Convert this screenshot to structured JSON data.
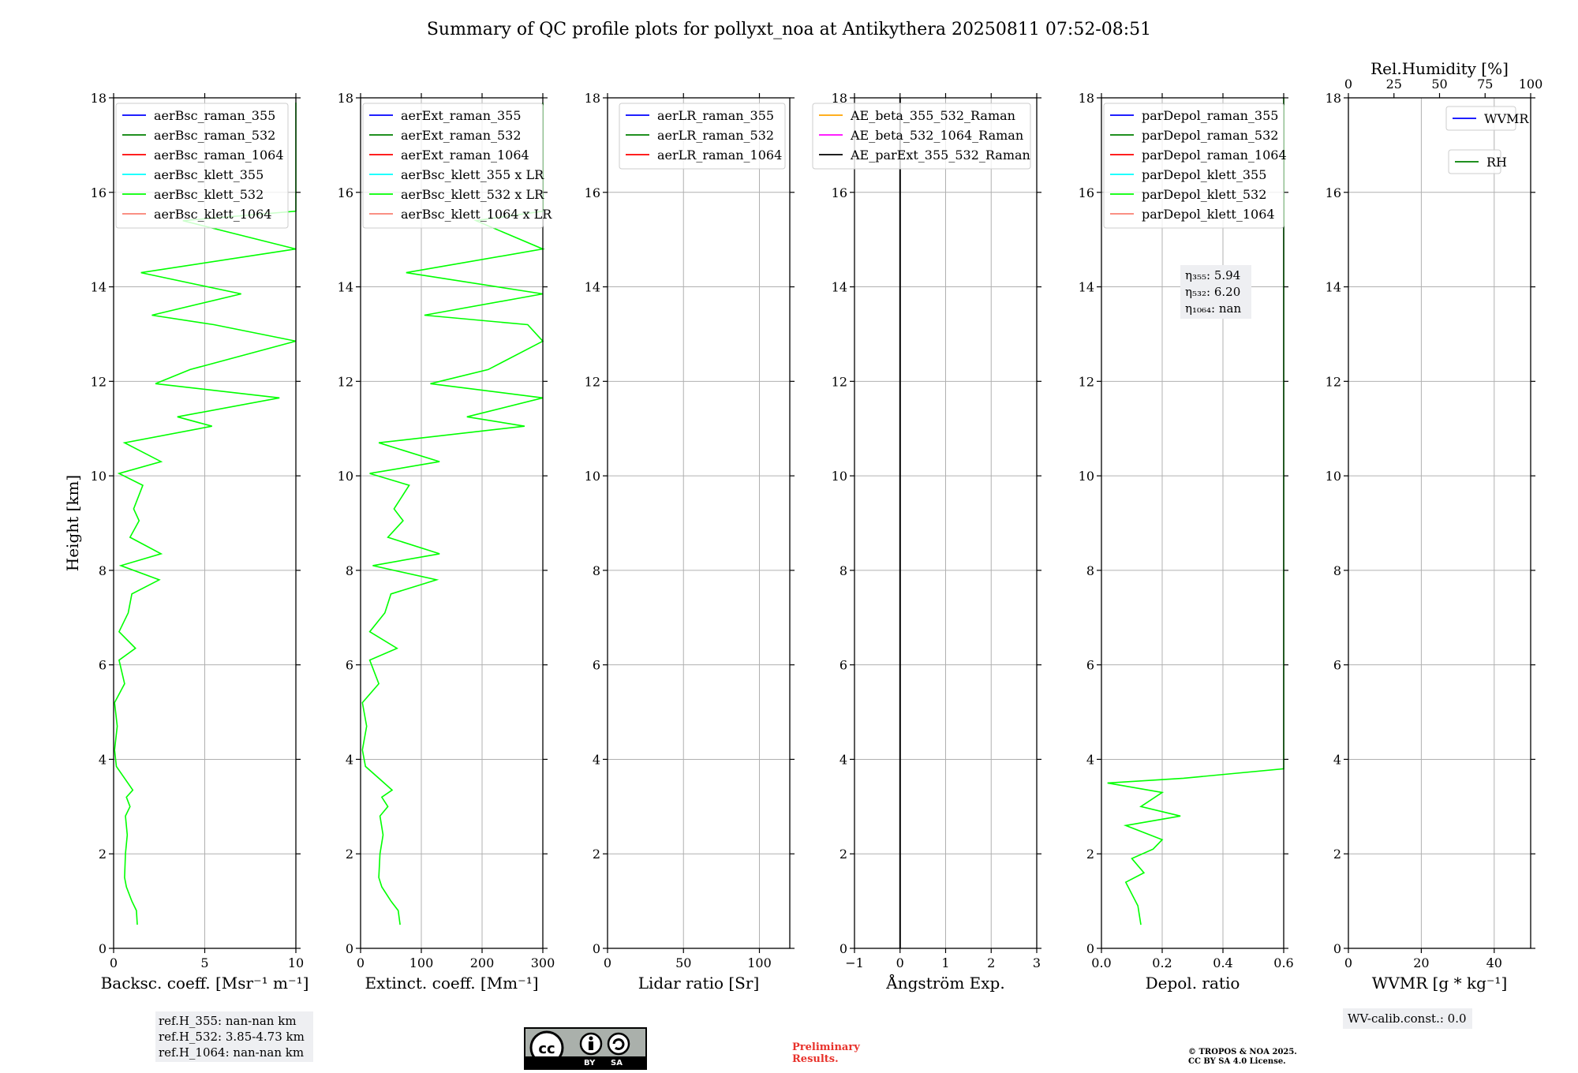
{
  "title": "Summary of QC profile plots for pollyxt_noa at Antikythera 20250811 07:52-08:51",
  "colors": {
    "blue": "#0000ff",
    "green": "#008000",
    "red": "#ff0000",
    "cyan": "#00ffff",
    "lime": "#00ff00",
    "salmon": "#fa8072",
    "orange": "#ffa500",
    "magenta": "#ff00ff",
    "black": "#000000"
  },
  "chart_data": [
    {
      "type": "line",
      "xlabel": "Backsc. coeff. [Msr⁻¹ m⁻¹]",
      "ylabel": "Height [km]",
      "xlim": [
        0,
        10
      ],
      "xticks": [
        "0",
        "5",
        "10"
      ],
      "ylim": [
        0,
        18
      ],
      "yticks": [
        "0",
        "2",
        "4",
        "6",
        "8",
        "10",
        "12",
        "14",
        "16",
        "18"
      ],
      "grid": true,
      "legend_position": "top-left",
      "series": [
        {
          "name": "aerBsc_raman_355",
          "color": "#0000ff",
          "points": []
        },
        {
          "name": "aerBsc_raman_532",
          "color": "#008000",
          "points": []
        },
        {
          "name": "aerBsc_raman_1064",
          "color": "#ff0000",
          "points": []
        },
        {
          "name": "aerBsc_klett_355",
          "color": "#00ffff",
          "points": []
        },
        {
          "name": "aerBsc_klett_532",
          "color": "#00ff00",
          "points": [
            [
              1.3,
              0.5
            ],
            [
              1.25,
              0.8
            ],
            [
              1.0,
              1.0
            ],
            [
              0.7,
              1.3
            ],
            [
              0.6,
              1.5
            ],
            [
              0.65,
              2.0
            ],
            [
              0.75,
              2.4
            ],
            [
              0.65,
              2.8
            ],
            [
              0.9,
              3.0
            ],
            [
              0.7,
              3.2
            ],
            [
              1.05,
              3.35
            ],
            [
              0.6,
              3.6
            ],
            [
              0.15,
              3.85
            ],
            [
              0.05,
              4.2
            ],
            [
              0.2,
              4.7
            ],
            [
              0.05,
              5.2
            ],
            [
              0.6,
              5.6
            ],
            [
              0.3,
              6.1
            ],
            [
              1.2,
              6.35
            ],
            [
              0.3,
              6.7
            ],
            [
              0.8,
              7.1
            ],
            [
              1.0,
              7.5
            ],
            [
              2.5,
              7.8
            ],
            [
              0.4,
              8.1
            ],
            [
              2.6,
              8.35
            ],
            [
              0.9,
              8.7
            ],
            [
              1.4,
              9.05
            ],
            [
              1.1,
              9.3
            ],
            [
              1.6,
              9.8
            ],
            [
              0.3,
              10.05
            ],
            [
              2.6,
              10.3
            ],
            [
              0.6,
              10.7
            ],
            [
              5.4,
              11.05
            ],
            [
              3.5,
              11.25
            ],
            [
              9.1,
              11.65
            ],
            [
              2.3,
              11.95
            ],
            [
              4.2,
              12.25
            ],
            [
              10.0,
              12.85
            ],
            [
              5.5,
              13.2
            ],
            [
              2.1,
              13.4
            ],
            [
              7.0,
              13.85
            ],
            [
              1.5,
              14.3
            ],
            [
              10,
              14.8
            ],
            [
              3.8,
              15.4
            ],
            [
              10,
              15.6
            ],
            [
              10,
              17.2
            ],
            [
              10,
              17.9
            ]
          ]
        },
        {
          "name": "aerBsc_klett_1064",
          "color": "#fa8072",
          "points": []
        }
      ],
      "reference_heights": [
        "ref.H_355: nan-nan km",
        "ref.H_532: 3.85-4.73 km",
        "ref.H_1064: nan-nan km"
      ]
    },
    {
      "type": "line",
      "xlabel": "Extinct. coeff. [Mm⁻¹]",
      "xlim": [
        0,
        300
      ],
      "xticks": [
        "0",
        "100",
        "200",
        "300"
      ],
      "ylim": [
        0,
        18
      ],
      "yticks": [
        "0",
        "2",
        "4",
        "6",
        "8",
        "10",
        "12",
        "14",
        "16",
        "18"
      ],
      "grid": true,
      "legend_position": "top-left",
      "series": [
        {
          "name": "aerExt_raman_355",
          "color": "#0000ff",
          "points": []
        },
        {
          "name": "aerExt_raman_532",
          "color": "#008000",
          "points": []
        },
        {
          "name": "aerExt_raman_1064",
          "color": "#ff0000",
          "points": []
        },
        {
          "name": "aerBsc_klett_355 x LR",
          "color": "#00ffff",
          "points": []
        },
        {
          "name": "aerBsc_klett_532 x LR",
          "color": "#00ff00",
          "points": [
            [
              65,
              0.5
            ],
            [
              62,
              0.8
            ],
            [
              50,
              1.0
            ],
            [
              35,
              1.3
            ],
            [
              30,
              1.5
            ],
            [
              32,
              2.0
            ],
            [
              37,
              2.4
            ],
            [
              32,
              2.8
            ],
            [
              45,
              3.0
            ],
            [
              35,
              3.2
            ],
            [
              52,
              3.35
            ],
            [
              30,
              3.6
            ],
            [
              8,
              3.85
            ],
            [
              3,
              4.2
            ],
            [
              10,
              4.7
            ],
            [
              3,
              5.2
            ],
            [
              30,
              5.6
            ],
            [
              15,
              6.1
            ],
            [
              60,
              6.35
            ],
            [
              15,
              6.7
            ],
            [
              40,
              7.1
            ],
            [
              50,
              7.5
            ],
            [
              125,
              7.8
            ],
            [
              20,
              8.1
            ],
            [
              130,
              8.35
            ],
            [
              45,
              8.7
            ],
            [
              70,
              9.05
            ],
            [
              55,
              9.3
            ],
            [
              80,
              9.8
            ],
            [
              15,
              10.05
            ],
            [
              130,
              10.3
            ],
            [
              30,
              10.7
            ],
            [
              270,
              11.05
            ],
            [
              175,
              11.25
            ],
            [
              300,
              11.65
            ],
            [
              115,
              11.95
            ],
            [
              210,
              12.25
            ],
            [
              300,
              12.85
            ],
            [
              275,
              13.2
            ],
            [
              105,
              13.4
            ],
            [
              300,
              13.85
            ],
            [
              75,
              14.3
            ],
            [
              300,
              14.8
            ],
            [
              190,
              15.4
            ],
            [
              300,
              15.6
            ],
            [
              300,
              17.2
            ],
            [
              300,
              17.9
            ]
          ]
        },
        {
          "name": "aerBsc_klett_1064 x LR",
          "color": "#fa8072",
          "points": []
        }
      ]
    },
    {
      "type": "line",
      "xlabel": "Lidar ratio [Sr]",
      "xlim": [
        0,
        120
      ],
      "xticks": [
        "0",
        "50",
        "100"
      ],
      "ylim": [
        0,
        18
      ],
      "yticks": [
        "0",
        "2",
        "4",
        "6",
        "8",
        "10",
        "12",
        "14",
        "16",
        "18"
      ],
      "grid": true,
      "legend_position": "top-right",
      "series": [
        {
          "name": "aerLR_raman_355",
          "color": "#0000ff",
          "points": []
        },
        {
          "name": "aerLR_raman_532",
          "color": "#008000",
          "points": []
        },
        {
          "name": "aerLR_raman_1064",
          "color": "#ff0000",
          "points": []
        }
      ]
    },
    {
      "type": "line",
      "xlabel": "Ångström Exp.",
      "xlim": [
        -1,
        3
      ],
      "xticks": [
        "−1",
        "0",
        "1",
        "2",
        "3"
      ],
      "ylim": [
        0,
        18
      ],
      "yticks": [
        "0",
        "2",
        "4",
        "6",
        "8",
        "10",
        "12",
        "14",
        "16",
        "18"
      ],
      "grid": true,
      "legend_position": "top-left",
      "series": [
        {
          "name": "AE_beta_355_532_Raman",
          "color": "#ffa500",
          "points": []
        },
        {
          "name": "AE_beta_532_1064_Raman",
          "color": "#ff00ff",
          "points": []
        },
        {
          "name": "AE_parExt_355_532_Raman",
          "color": "#000000",
          "points": [
            [
              0,
              0
            ],
            [
              0,
              18
            ]
          ]
        }
      ]
    },
    {
      "type": "line",
      "xlabel": "Depol. ratio",
      "xlim": [
        0,
        0.6
      ],
      "xticks": [
        "0.0",
        "0.2",
        "0.4",
        "0.6"
      ],
      "ylim": [
        0,
        18
      ],
      "yticks": [
        "0",
        "2",
        "4",
        "6",
        "8",
        "10",
        "12",
        "14",
        "16",
        "18"
      ],
      "grid": true,
      "legend_position": "top-left",
      "series": [
        {
          "name": "parDepol_raman_355",
          "color": "#0000ff",
          "points": []
        },
        {
          "name": "parDepol_raman_532",
          "color": "#008000",
          "points": []
        },
        {
          "name": "parDepol_raman_1064",
          "color": "#ff0000",
          "points": []
        },
        {
          "name": "parDepol_klett_355",
          "color": "#00ffff",
          "points": []
        },
        {
          "name": "parDepol_klett_532",
          "color": "#00ff00",
          "points": [
            [
              0.13,
              0.5
            ],
            [
              0.12,
              0.9
            ],
            [
              0.08,
              1.4
            ],
            [
              0.14,
              1.6
            ],
            [
              0.1,
              1.9
            ],
            [
              0.17,
              2.1
            ],
            [
              0.2,
              2.3
            ],
            [
              0.08,
              2.6
            ],
            [
              0.26,
              2.8
            ],
            [
              0.13,
              3.0
            ],
            [
              0.2,
              3.3
            ],
            [
              0.02,
              3.5
            ],
            [
              0.27,
              3.6
            ],
            [
              0.6,
              3.8
            ],
            [
              0.6,
              18
            ]
          ]
        },
        {
          "name": "parDepol_klett_1064",
          "color": "#fa8072",
          "points": []
        }
      ],
      "annotation": [
        "η₃₅₅: 5.94",
        "η₅₃₂: 6.20",
        "η₁₀₆₄: nan"
      ]
    },
    {
      "type": "line",
      "xlabel": "WVMR [g * kg⁻¹]",
      "xlim": [
        0,
        50
      ],
      "xticks": [
        "0",
        "20",
        "40"
      ],
      "x2label": "Rel.Humidity [%]",
      "x2lim": [
        0,
        100
      ],
      "x2ticks": [
        "0",
        "25",
        "50",
        "75",
        "100"
      ],
      "ylim": [
        0,
        18
      ],
      "yticks": [
        "0",
        "2",
        "4",
        "6",
        "8",
        "10",
        "12",
        "14",
        "16",
        "18"
      ],
      "grid": true,
      "legend_position": "top-right",
      "series": [
        {
          "name": "WVMR",
          "color": "#0000ff",
          "points": []
        },
        {
          "name": "RH",
          "color": "#008000",
          "points": []
        }
      ],
      "calibration": "WV-calib.const.: 0.0"
    }
  ],
  "footer": {
    "license_by": "BY",
    "license_sa": "SA",
    "preliminary_line1": "Preliminary",
    "preliminary_line2": "Results.",
    "copyright_line1": "© TROPOS & NOA 2025.",
    "copyright_line2": "CC BY SA 4.0 License."
  }
}
